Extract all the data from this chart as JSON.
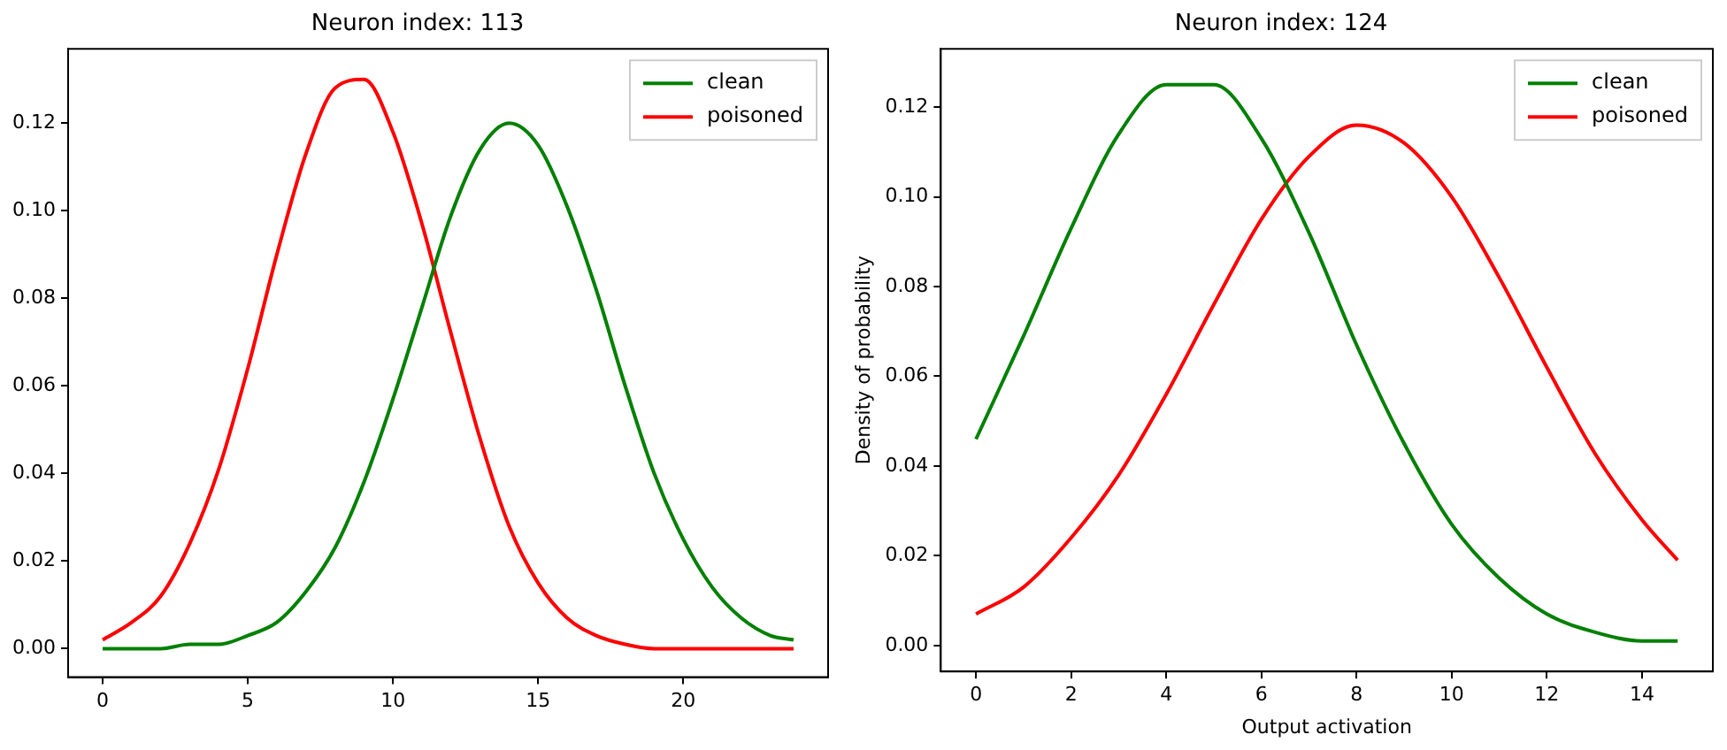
{
  "chart_data": [
    {
      "type": "line",
      "title": "Neuron index: 113",
      "x": [
        0,
        1,
        2,
        3,
        4,
        5,
        6,
        7,
        8,
        9,
        10,
        11,
        12,
        13,
        14,
        15,
        16,
        17,
        18,
        19,
        20,
        21,
        22,
        23,
        23.8
      ],
      "series": [
        {
          "name": "clean",
          "color": "#008000",
          "values": [
            0.0,
            0.0,
            0.0,
            0.001,
            0.001,
            0.003,
            0.006,
            0.013,
            0.023,
            0.038,
            0.057,
            0.078,
            0.099,
            0.114,
            0.12,
            0.115,
            0.101,
            0.082,
            0.06,
            0.04,
            0.025,
            0.014,
            0.007,
            0.003,
            0.002
          ]
        },
        {
          "name": "poisoned",
          "color": "#ff0000",
          "values": [
            0.002,
            0.006,
            0.012,
            0.024,
            0.041,
            0.064,
            0.09,
            0.113,
            0.128,
            0.13,
            0.118,
            0.097,
            0.072,
            0.048,
            0.028,
            0.015,
            0.007,
            0.003,
            0.001,
            0.0,
            0.0,
            0.0,
            0.0,
            0.0,
            0.0
          ]
        }
      ],
      "xlim": [
        -1.19,
        24.99
      ],
      "ylim": [
        -0.0065,
        0.137
      ],
      "xticks": [
        0,
        5,
        10,
        15,
        20
      ],
      "yticks": [
        {
          "value": 0,
          "label": "0.00"
        },
        {
          "value": 0.02,
          "label": "0.02"
        },
        {
          "value": 0.04,
          "label": "0.04"
        },
        {
          "value": 0.06,
          "label": "0.06"
        },
        {
          "value": 0.08,
          "label": "0.08"
        },
        {
          "value": 0.1,
          "label": "0.10"
        },
        {
          "value": 0.12,
          "label": "0.12"
        }
      ],
      "legend": "top right",
      "grid": false,
      "marker": "none",
      "line_style": "solid"
    },
    {
      "type": "line",
      "title": "Neuron index: 124",
      "xlabel": "Output activation",
      "ylabel": "Density of probability",
      "x": [
        0,
        1,
        2,
        3,
        4,
        5,
        6,
        7,
        8,
        9,
        10,
        11,
        12,
        13,
        14,
        14.75
      ],
      "series": [
        {
          "name": "clean",
          "color": "#008000",
          "values": [
            0.046,
            0.069,
            0.093,
            0.114,
            0.125,
            0.125,
            0.113,
            0.092,
            0.067,
            0.045,
            0.027,
            0.015,
            0.007,
            0.003,
            0.001,
            0.001
          ]
        },
        {
          "name": "poisoned",
          "color": "#ff0000",
          "values": [
            0.007,
            0.013,
            0.024,
            0.038,
            0.056,
            0.076,
            0.095,
            0.109,
            0.116,
            0.112,
            0.1,
            0.082,
            0.062,
            0.043,
            0.028,
            0.019
          ]
        }
      ],
      "xlim": [
        -0.74,
        15.49
      ],
      "ylim": [
        -0.0058,
        0.133
      ],
      "xticks": [
        0,
        2,
        4,
        6,
        8,
        10,
        12,
        14
      ],
      "yticks": [
        {
          "value": 0,
          "label": "0.00"
        },
        {
          "value": 0.02,
          "label": "0.02"
        },
        {
          "value": 0.04,
          "label": "0.04"
        },
        {
          "value": 0.06,
          "label": "0.06"
        },
        {
          "value": 0.08,
          "label": "0.08"
        },
        {
          "value": 0.1,
          "label": "0.10"
        },
        {
          "value": 0.12,
          "label": "0.12"
        }
      ],
      "legend": "top right",
      "grid": false,
      "marker": "none",
      "line_style": "solid"
    }
  ]
}
